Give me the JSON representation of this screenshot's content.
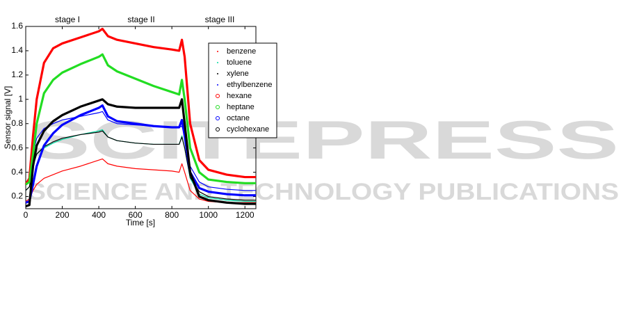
{
  "chart_data": {
    "type": "line",
    "xlabel": "Time [s]",
    "ylabel": "Sensor signal [V]",
    "annotations": [
      "stage I",
      "stage II",
      "stage III"
    ],
    "watermark": [
      "SCITEPRESS",
      "SCIENCE AND TECHNOLOGY PUBLICATIONS"
    ],
    "x": [
      0,
      20,
      40,
      60,
      100,
      150,
      200,
      300,
      400,
      420,
      450,
      500,
      600,
      700,
      800,
      840,
      855,
      870,
      900,
      950,
      1000,
      1100,
      1200,
      1260
    ],
    "xlim": [
      0,
      1260
    ],
    "xticks": [
      0,
      200,
      400,
      600,
      800,
      1000,
      1200
    ],
    "ylim": [
      0.1,
      1.6
    ],
    "yticks": [
      0.2,
      0.4,
      0.6,
      0.8,
      1,
      1.2,
      1.4,
      1.6
    ],
    "legend": "upper right",
    "series": [
      {
        "name": "benzene",
        "color": "#ff0000",
        "marker": "dot",
        "values": [
          0.16,
          0.18,
          0.25,
          0.3,
          0.35,
          0.38,
          0.41,
          0.45,
          0.5,
          0.51,
          0.47,
          0.45,
          0.43,
          0.42,
          0.41,
          0.4,
          0.47,
          0.4,
          0.25,
          0.18,
          0.16,
          0.15,
          0.15,
          0.15
        ]
      },
      {
        "name": "toluene",
        "color": "#00d8a0",
        "marker": "dot",
        "values": [
          0.25,
          0.28,
          0.45,
          0.55,
          0.6,
          0.64,
          0.67,
          0.71,
          0.74,
          0.75,
          0.69,
          0.66,
          0.64,
          0.63,
          0.63,
          0.63,
          0.7,
          0.6,
          0.35,
          0.22,
          0.19,
          0.17,
          0.16,
          0.16
        ]
      },
      {
        "name": "xylene",
        "color": "#000000",
        "marker": "dot",
        "values": [
          0.25,
          0.28,
          0.45,
          0.55,
          0.61,
          0.65,
          0.68,
          0.71,
          0.73,
          0.74,
          0.69,
          0.66,
          0.64,
          0.63,
          0.63,
          0.63,
          0.69,
          0.6,
          0.36,
          0.24,
          0.2,
          0.18,
          0.17,
          0.17
        ]
      },
      {
        "name": "ethylbenzene",
        "color": "#0000ff",
        "marker": "dot",
        "values": [
          0.3,
          0.35,
          0.55,
          0.68,
          0.76,
          0.8,
          0.83,
          0.86,
          0.89,
          0.9,
          0.83,
          0.8,
          0.79,
          0.78,
          0.77,
          0.77,
          0.78,
          0.7,
          0.45,
          0.32,
          0.28,
          0.26,
          0.25,
          0.25
        ]
      },
      {
        "name": "hexane",
        "color": "#ff0000",
        "marker": "circle",
        "values": [
          0.3,
          0.35,
          0.7,
          1.0,
          1.3,
          1.42,
          1.46,
          1.51,
          1.56,
          1.58,
          1.52,
          1.49,
          1.46,
          1.43,
          1.41,
          1.4,
          1.49,
          1.35,
          0.8,
          0.5,
          0.42,
          0.38,
          0.36,
          0.36
        ]
      },
      {
        "name": "heptane",
        "color": "#22dd22",
        "marker": "circle",
        "values": [
          0.3,
          0.32,
          0.55,
          0.8,
          1.05,
          1.16,
          1.22,
          1.29,
          1.35,
          1.37,
          1.28,
          1.23,
          1.17,
          1.11,
          1.06,
          1.04,
          1.16,
          1.0,
          0.6,
          0.4,
          0.34,
          0.32,
          0.31,
          0.31
        ]
      },
      {
        "name": "octane",
        "color": "#0000ff",
        "marker": "circle",
        "values": [
          0.15,
          0.16,
          0.3,
          0.45,
          0.62,
          0.72,
          0.79,
          0.87,
          0.93,
          0.95,
          0.86,
          0.82,
          0.8,
          0.78,
          0.77,
          0.77,
          0.83,
          0.7,
          0.4,
          0.27,
          0.24,
          0.22,
          0.21,
          0.21
        ]
      },
      {
        "name": "cyclohexane",
        "color": "#000000",
        "marker": "circle",
        "values": [
          0.12,
          0.13,
          0.45,
          0.62,
          0.74,
          0.82,
          0.87,
          0.94,
          0.99,
          1.0,
          0.96,
          0.94,
          0.93,
          0.93,
          0.93,
          0.93,
          1.0,
          0.8,
          0.4,
          0.2,
          0.17,
          0.15,
          0.14,
          0.14
        ]
      }
    ]
  }
}
